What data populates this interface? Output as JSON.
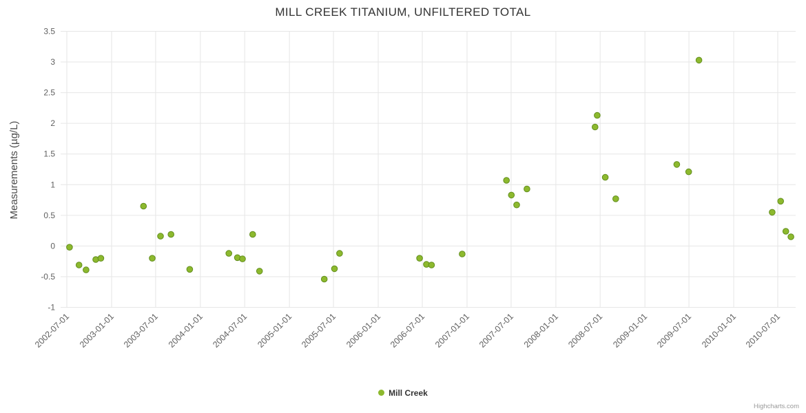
{
  "credit": "Highcharts.com",
  "colors": {
    "point_fill": "#8DB92E",
    "point_border": "#628E1E",
    "grid": "#e6e6e6",
    "tick_text": "#606060",
    "title_text": "#333333"
  },
  "chart_data": {
    "type": "scatter",
    "title": "MILL CREEK TITANIUM, UNFILTERED TOTAL",
    "xlabel": "",
    "ylabel": "Measurements (µg/L)",
    "ylim": [
      -1,
      3.5
    ],
    "grid": true,
    "legend_position": "bottom-center",
    "y_ticks": [
      3.5,
      3,
      2.5,
      2,
      1.5,
      1,
      0.5,
      0,
      -0.5,
      -1
    ],
    "x_ticks": [
      "2002-07-01",
      "2003-01-01",
      "2003-07-01",
      "2004-01-01",
      "2004-07-01",
      "2005-01-01",
      "2005-07-01",
      "2006-01-01",
      "2006-07-01",
      "2007-01-01",
      "2007-07-01",
      "2008-01-01",
      "2008-07-01",
      "2009-01-01",
      "2009-07-01",
      "2010-01-01",
      "2010-07-01"
    ],
    "series": [
      {
        "name": "Mill Creek",
        "color": "#8DB92E",
        "line_color": "#628E1E",
        "points": [
          [
            "2002-07-12",
            -0.02
          ],
          [
            "2002-08-20",
            -0.31
          ],
          [
            "2002-09-18",
            -0.39
          ],
          [
            "2002-10-28",
            -0.22
          ],
          [
            "2002-11-18",
            -0.2
          ],
          [
            "2003-05-12",
            0.65
          ],
          [
            "2003-06-17",
            -0.2
          ],
          [
            "2003-07-21",
            0.16
          ],
          [
            "2003-09-02",
            0.19
          ],
          [
            "2003-11-18",
            -0.38
          ],
          [
            "2004-04-27",
            -0.12
          ],
          [
            "2004-06-01",
            -0.19
          ],
          [
            "2004-06-22",
            -0.21
          ],
          [
            "2004-08-03",
            0.19
          ],
          [
            "2004-08-31",
            -0.41
          ],
          [
            "2005-05-24",
            -0.54
          ],
          [
            "2005-07-05",
            -0.37
          ],
          [
            "2005-07-26",
            -0.12
          ],
          [
            "2006-06-20",
            -0.2
          ],
          [
            "2006-07-18",
            -0.3
          ],
          [
            "2006-08-08",
            -0.31
          ],
          [
            "2006-12-12",
            -0.13
          ],
          [
            "2007-06-12",
            1.07
          ],
          [
            "2007-07-02",
            0.83
          ],
          [
            "2007-07-24",
            0.67
          ],
          [
            "2007-09-04",
            0.93
          ],
          [
            "2008-06-10",
            1.94
          ],
          [
            "2008-06-19",
            2.13
          ],
          [
            "2008-07-22",
            1.12
          ],
          [
            "2008-09-03",
            0.77
          ],
          [
            "2009-05-12",
            1.33
          ],
          [
            "2009-06-30",
            1.21
          ],
          [
            "2009-08-11",
            3.03
          ],
          [
            "2010-06-08",
            0.55
          ],
          [
            "2010-07-13",
            0.73
          ],
          [
            "2010-08-03",
            0.24
          ],
          [
            "2010-08-24",
            0.15
          ]
        ]
      }
    ]
  }
}
